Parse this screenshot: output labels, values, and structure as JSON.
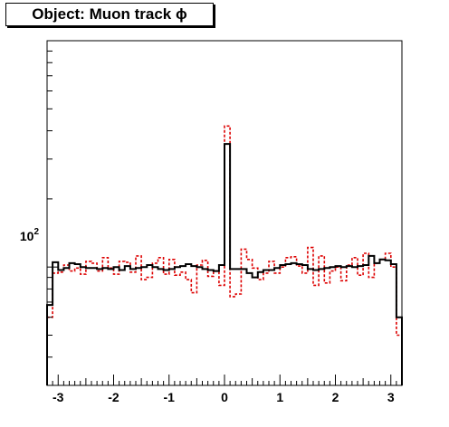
{
  "chart_data": {
    "type": "step-histogram",
    "title": "Object: Muon track ϕ",
    "xlabel": "",
    "ylabel": "",
    "xlim": [
      -3.2,
      3.2
    ],
    "ylim": [
      30,
      1000
    ],
    "yscale": "log",
    "grid": false,
    "legend": "none",
    "x_ticks": [
      -3,
      -2,
      -1,
      0,
      1,
      2,
      3
    ],
    "x_tick_labels": [
      "-3",
      "-2",
      "-1",
      "0",
      "1",
      "2",
      "3"
    ],
    "y_tick_label_base": "10",
    "y_tick_label_exp": "2",
    "y_tick_label_value": 100,
    "bin_edges_range": [
      -3.2,
      3.2
    ],
    "n_bins": 64,
    "series": [
      {
        "style": "solid",
        "color": "#000000",
        "values": [
          68,
          105,
          97,
          99,
          104,
          103,
          100,
          99,
          99,
          98,
          99,
          98,
          100,
          97,
          101,
          98,
          99,
          100,
          102,
          100,
          98,
          97,
          98,
          100,
          101,
          103,
          101,
          100,
          98,
          97,
          96,
          102,
          350,
          98,
          98,
          98,
          94,
          90,
          95,
          97,
          97,
          99,
          102,
          103,
          104,
          103,
          102,
          98,
          97,
          98,
          99,
          100,
          101,
          100,
          101,
          100,
          101,
          102,
          112,
          104,
          108,
          107,
          103,
          60
        ]
      },
      {
        "style": "dashed",
        "color": "#dd0000",
        "values": [
          60,
          94,
          95,
          102,
          96,
          99,
          93,
          106,
          104,
          96,
          110,
          99,
          93,
          106,
          105,
          95,
          112,
          88,
          90,
          104,
          110,
          93,
          108,
          92,
          95,
          88,
          77,
          102,
          107,
          91,
          96,
          83,
          420,
          74,
          76,
          120,
          108,
          99,
          88,
          94,
          106,
          94,
          100,
          110,
          111,
          101,
          94,
          122,
          83,
          112,
          85,
          96,
          100,
          87,
          102,
          110,
          92,
          115,
          90,
          104,
          108,
          115,
          100,
          50
        ]
      }
    ]
  }
}
